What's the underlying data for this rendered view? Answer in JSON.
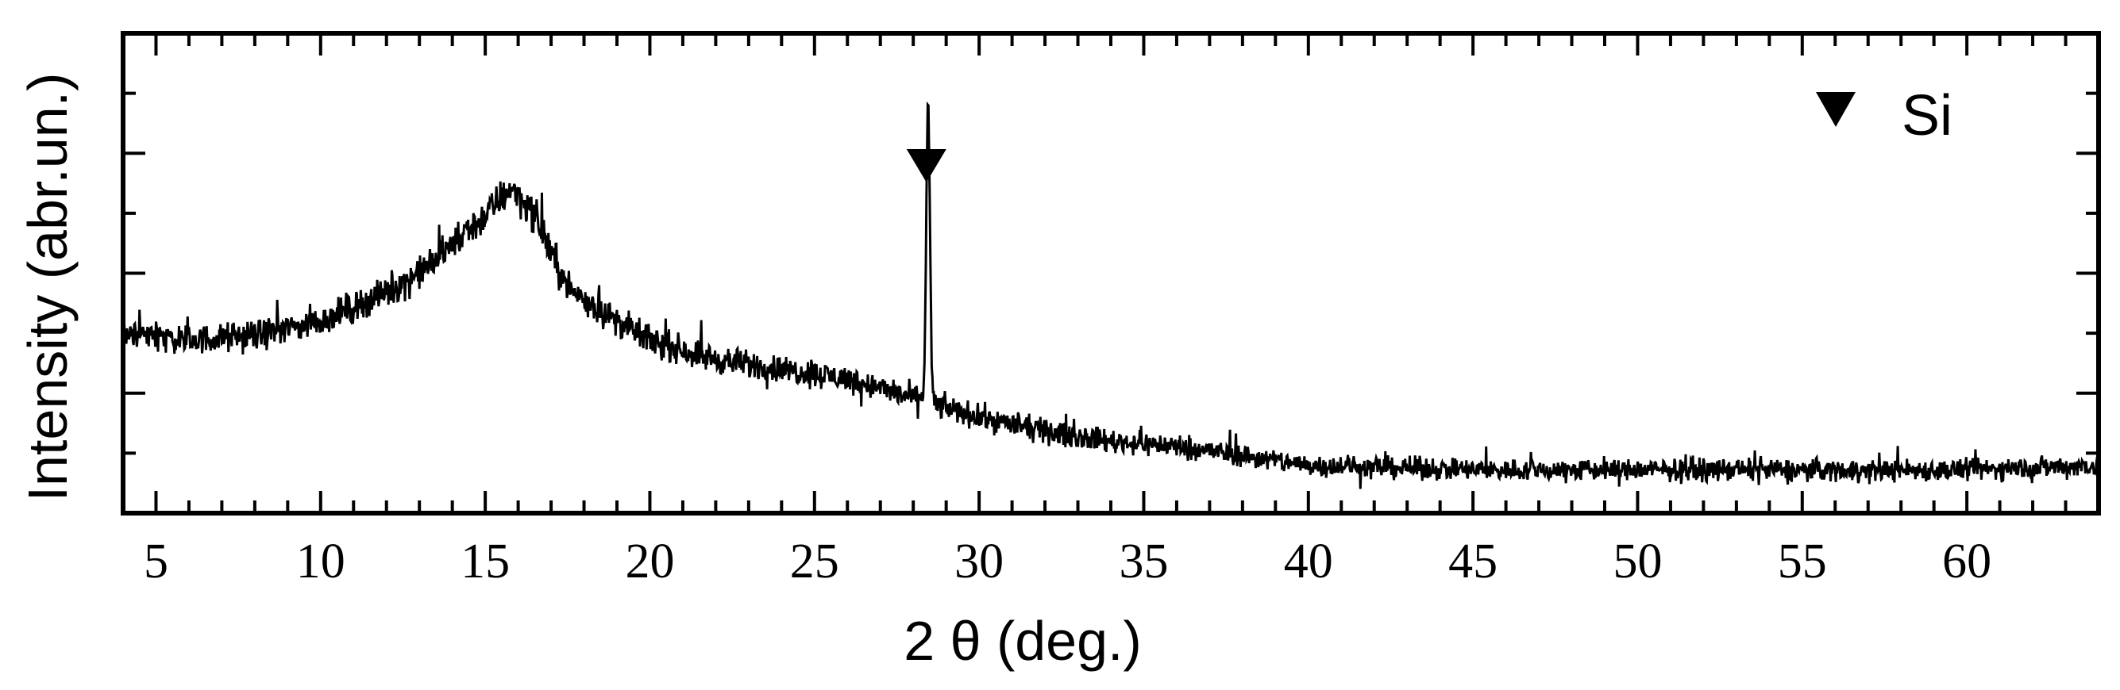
{
  "chart_data": {
    "type": "line",
    "xlabel": "2 θ (deg.)",
    "ylabel": "Intensity (abr.un.)",
    "xlim": [
      4,
      64
    ],
    "ylim": [
      0,
      1
    ],
    "x_ticks": [
      5,
      10,
      15,
      20,
      25,
      30,
      35,
      40,
      45,
      50,
      55,
      60
    ],
    "x_tick_labels": [
      "5",
      "10",
      "15",
      "20",
      "25",
      "30",
      "35",
      "40",
      "45",
      "50",
      "55",
      "60"
    ],
    "y_tick_labels_shown": false,
    "grid": false,
    "legend": {
      "position": "top-right",
      "entries": [
        {
          "marker": "down-triangle",
          "label": "Si"
        }
      ]
    },
    "annotations": [
      {
        "marker": "down-triangle",
        "x": 28.4,
        "note": "Si"
      }
    ],
    "series": [
      {
        "noise_amplitude": 0.05,
        "baseline": {
          "x": [
            4,
            6,
            8,
            10,
            11,
            12,
            13,
            14,
            15,
            15.8,
            16.5,
            17.5,
            19,
            20,
            22,
            24,
            26,
            27,
            28,
            30,
            32,
            34,
            36,
            38,
            40,
            45,
            50,
            55,
            60,
            64
          ],
          "y": [
            0.38,
            0.36,
            0.37,
            0.4,
            0.43,
            0.46,
            0.5,
            0.56,
            0.62,
            0.68,
            0.62,
            0.47,
            0.4,
            0.36,
            0.32,
            0.3,
            0.28,
            0.26,
            0.24,
            0.2,
            0.17,
            0.15,
            0.14,
            0.12,
            0.1,
            0.09,
            0.09,
            0.09,
            0.09,
            0.1
          ]
        },
        "peaks": [
          {
            "x": 28.45,
            "height": 0.62,
            "width": 0.08
          }
        ]
      }
    ]
  }
}
